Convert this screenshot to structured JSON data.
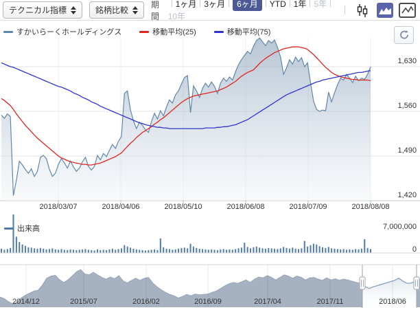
{
  "toolbar": {
    "indicator_select_label": "テクニカル指標",
    "compare_select_label": "銘柄比較",
    "period_label": "期間",
    "periods": [
      {
        "label": "1ヶ月",
        "state": "normal"
      },
      {
        "label": "3ヶ月",
        "state": "normal"
      },
      {
        "label": "6ヶ月",
        "state": "selected"
      },
      {
        "label": "YTD",
        "state": "normal"
      },
      {
        "label": "1年",
        "state": "normal"
      },
      {
        "label": "5年",
        "state": "disabled"
      },
      {
        "label": "10年",
        "state": "disabled"
      }
    ],
    "chart_types": [
      {
        "name": "candlestick-icon",
        "selected": false
      },
      {
        "name": "area-chart-icon",
        "selected": true
      },
      {
        "name": "line-chart-icon",
        "selected": false
      }
    ],
    "selected_period_bg": "#4c5995",
    "selected_icon_bg": "#5964ab"
  },
  "legend": {
    "items": [
      {
        "label": "すかいらーくホールディングス",
        "color": "#5f87ac"
      },
      {
        "label": "移動平均(25)",
        "color": "#e0251f"
      },
      {
        "label": "移動平均(75)",
        "color": "#2d35d0"
      }
    ]
  },
  "volume_legend_label": "出来高",
  "chart_data": [
    {
      "type": "area",
      "name": "price-panel",
      "description": "すかいらーくホールディングス 6ヶ月 日足チャート 2018/02/08-2018/08/08",
      "grid": true,
      "legend_position": "top-left",
      "y_ticks": [
        {
          "label": "1,630",
          "value": 1630
        },
        {
          "label": "1,560",
          "value": 1560
        },
        {
          "label": "1,490",
          "value": 1490
        },
        {
          "label": "1,420",
          "value": 1420
        }
      ],
      "ylim": [
        1420,
        1630
      ],
      "x_ticks": [
        "2018/03/07",
        "2018/04/06",
        "2018/05/10",
        "2018/06/08",
        "2018/07/09",
        "2018/08/08"
      ],
      "series": [
        {
          "name": "すかいらーくホールディングス",
          "type": "area",
          "color": "#5f87ac",
          "values": [
            1554,
            1549,
            1556,
            1552,
            1428,
            1452,
            1482,
            1476,
            1469,
            1463,
            1470,
            1458,
            1466,
            1488,
            1491,
            1486,
            1469,
            1458,
            1463,
            1477,
            1486,
            1479,
            1471,
            1482,
            1473,
            1466,
            1471,
            1481,
            1488,
            1474,
            1468,
            1474,
            1491,
            1484,
            1494,
            1489,
            1499,
            1508,
            1502,
            1513,
            1521,
            1588,
            1592,
            1562,
            1545,
            1533,
            1543,
            1538,
            1531,
            1527,
            1544,
            1557,
            1548,
            1561,
            1553,
            1567,
            1578,
            1573,
            1586,
            1592,
            1603,
            1613,
            1616,
            1558,
            1600,
            1592,
            1582,
            1596,
            1604,
            1598,
            1606,
            1599,
            1588,
            1604,
            1612,
            1607,
            1614,
            1609,
            1622,
            1633,
            1641,
            1648,
            1654,
            1650,
            1662,
            1671,
            1675,
            1669,
            1663,
            1671,
            1667,
            1672,
            1660,
            1645,
            1618,
            1628,
            1641,
            1634,
            1645,
            1638,
            1644,
            1630,
            1636,
            1605,
            1576,
            1563,
            1560,
            1562,
            1561,
            1590,
            1575,
            1589,
            1602,
            1612,
            1609,
            1618,
            1612,
            1605,
            1615,
            1608,
            1612,
            1610,
            1618,
            1630
          ]
        },
        {
          "name": "移動平均(25)",
          "type": "line",
          "color": "#e0251f",
          "values": [
            1580,
            1577,
            1573,
            1569,
            1563,
            1556,
            1550,
            1544,
            1538,
            1533,
            1528,
            1523,
            1518,
            1514,
            1510,
            1506,
            1502,
            1498,
            1494,
            1490,
            1487,
            1485,
            1483,
            1481,
            1480,
            1479,
            1478,
            1477,
            1477,
            1476,
            1476,
            1477,
            1478,
            1479,
            1481,
            1483,
            1485,
            1487,
            1489,
            1492,
            1495,
            1500,
            1505,
            1510,
            1514,
            1519,
            1523,
            1527,
            1530,
            1533,
            1536,
            1540,
            1543,
            1547,
            1550,
            1554,
            1558,
            1562,
            1566,
            1570,
            1574,
            1577,
            1580,
            1582,
            1584,
            1585,
            1586,
            1587,
            1588,
            1589,
            1590,
            1591,
            1592,
            1594,
            1596,
            1598,
            1601,
            1604,
            1607,
            1611,
            1615,
            1618,
            1621,
            1623,
            1625,
            1630,
            1635,
            1639,
            1643,
            1646,
            1649,
            1652,
            1654,
            1656,
            1658,
            1659,
            1660,
            1661,
            1661,
            1661,
            1660,
            1659,
            1657,
            1653,
            1649,
            1644,
            1639,
            1634,
            1629,
            1625,
            1621,
            1618,
            1616,
            1614,
            1613,
            1612,
            1611,
            1610,
            1610,
            1609,
            1609,
            1609,
            1609,
            1608
          ]
        },
        {
          "name": "移動平均(75)",
          "type": "line",
          "color": "#2d35d0",
          "values": [
            1636,
            1634,
            1632,
            1630,
            1629,
            1627,
            1625,
            1623,
            1621,
            1619,
            1617,
            1615,
            1613,
            1611,
            1609,
            1607,
            1605,
            1603,
            1601,
            1599,
            1598,
            1596,
            1594,
            1592,
            1589,
            1587,
            1585,
            1582,
            1580,
            1578,
            1575,
            1573,
            1571,
            1568,
            1566,
            1564,
            1562,
            1560,
            1558,
            1556,
            1554,
            1552,
            1550,
            1548,
            1546,
            1544,
            1542,
            1541,
            1539,
            1538,
            1537,
            1536,
            1535,
            1535,
            1534,
            1534,
            1533,
            1533,
            1533,
            1533,
            1533,
            1533,
            1533,
            1533,
            1533,
            1533,
            1533,
            1533,
            1534,
            1534,
            1534,
            1534,
            1535,
            1535,
            1536,
            1536,
            1537,
            1538,
            1539,
            1541,
            1543,
            1545,
            1547,
            1550,
            1553,
            1556,
            1559,
            1562,
            1565,
            1568,
            1571,
            1574,
            1577,
            1580,
            1583,
            1586,
            1588,
            1590,
            1592,
            1594,
            1596,
            1598,
            1600,
            1602,
            1604,
            1606,
            1607,
            1609,
            1610,
            1611,
            1612,
            1613,
            1614,
            1615,
            1616,
            1617,
            1618,
            1619,
            1620,
            1621,
            1621,
            1622,
            1623,
            1624
          ]
        }
      ]
    },
    {
      "type": "bar",
      "name": "volume-panel",
      "series_name": "出来高",
      "color": "#4f7ba9",
      "y_ticks": [
        {
          "label": "7,000,000",
          "value": 7000000
        },
        {
          "label": "0",
          "value": 0
        }
      ],
      "values_millions": [
        1.2,
        0.9,
        1.1,
        1.4,
        10.9,
        4.6,
        3.1,
        2.4,
        2.0,
        1.6,
        1.5,
        1.3,
        1.2,
        1.4,
        1.2,
        1.0,
        1.1,
        1.3,
        1.0,
        0.9,
        1.1,
        0.9,
        0.8,
        1.0,
        0.9,
        0.8,
        0.9,
        1.0,
        1.1,
        0.9,
        0.8,
        0.7,
        1.0,
        0.8,
        0.9,
        0.8,
        1.0,
        1.2,
        0.9,
        1.1,
        1.3,
        2.2,
        1.8,
        1.5,
        1.2,
        1.0,
        0.9,
        0.8,
        0.7,
        0.8,
        0.9,
        1.0,
        0.8,
        4.1,
        1.6,
        1.2,
        1.1,
        0.9,
        1.0,
        1.2,
        1.4,
        1.5,
        1.3,
        2.6,
        1.8,
        1.4,
        1.2,
        1.1,
        1.0,
        0.9,
        1.0,
        0.9,
        0.8,
        1.0,
        1.1,
        0.9,
        1.0,
        0.9,
        1.1,
        1.3,
        1.5,
        2.9,
        1.7,
        1.3,
        1.6,
        1.8,
        1.5,
        1.3,
        1.2,
        1.4,
        1.3,
        1.2,
        1.1,
        1.3,
        1.7,
        1.4,
        1.2,
        1.5,
        1.2,
        1.1,
        1.3,
        3.4,
        1.8,
        2.2,
        2.6,
        2.4,
        1.9,
        1.6,
        1.4,
        1.7,
        1.3,
        1.2,
        1.1,
        1.0,
        1.1,
        0.9,
        1.0,
        0.9,
        1.1,
        1.0,
        1.2,
        3.9,
        1.4,
        1.1
      ]
    },
    {
      "type": "area",
      "name": "navigator-panel",
      "description": "全期間ナビゲーター 2014/12-2018/08",
      "x_ticks": [
        "2014/12",
        "2015/07",
        "2016/02",
        "2016/09",
        "2017/04",
        "2017/11",
        "2018/06"
      ],
      "selected_range_label": "2018/06",
      "selection": {
        "start_frac": 0.8627,
        "end_frac": 0.9918
      },
      "outside_color": "#a6b2c1",
      "selected_line_color": "#7d9cc2",
      "values_pct": [
        24,
        20,
        13,
        8,
        12,
        22,
        28,
        33,
        38,
        40,
        52,
        68,
        73,
        75,
        65,
        58,
        64,
        73,
        83,
        88,
        78,
        76,
        82,
        76,
        70,
        66,
        71,
        67,
        74,
        62,
        57,
        63,
        68,
        63,
        68,
        70,
        57,
        48,
        41,
        35,
        30,
        27,
        22,
        25,
        30,
        27,
        31,
        29,
        30,
        31,
        35,
        38,
        44,
        50,
        55,
        58,
        56,
        60,
        64,
        58,
        66,
        71,
        69,
        74,
        70,
        64,
        70,
        76,
        73,
        68,
        73,
        70,
        64,
        69,
        70,
        66,
        63,
        69,
        64,
        67,
        63,
        66,
        64,
        61,
        58,
        56,
        49,
        44,
        48,
        51,
        54,
        57,
        60,
        63,
        68,
        61,
        56,
        57,
        62,
        64
      ]
    }
  ]
}
